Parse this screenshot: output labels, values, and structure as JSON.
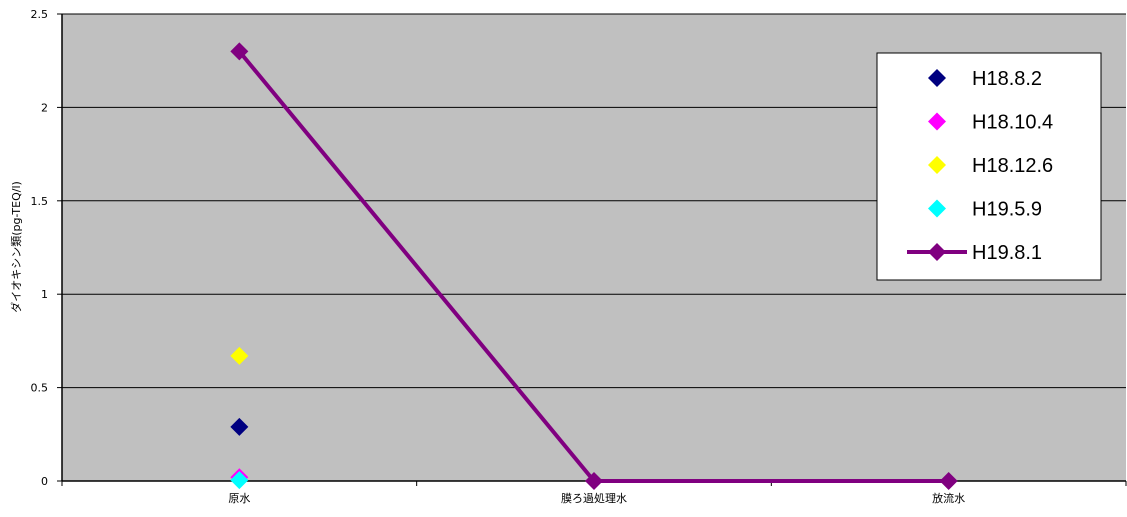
{
  "chart_data": {
    "type": "line",
    "categories": [
      "原水",
      "膜ろ過処理水",
      "放流水"
    ],
    "ylabel": "ダイオキシン類(pg-TEQ/l)",
    "ylim": [
      0,
      2.5
    ],
    "yticks": [
      "0",
      "0.5",
      "1",
      "1.5",
      "2",
      "2.5"
    ],
    "grid": true,
    "legend_position": "top-right",
    "series": [
      {
        "name": "H18.8.2",
        "values": [
          0.29,
          null,
          null
        ],
        "color": "#000080",
        "style": "marker"
      },
      {
        "name": "H18.10.4",
        "values": [
          0.02,
          null,
          null
        ],
        "color": "#ff00ff",
        "style": "marker"
      },
      {
        "name": "H18.12.6",
        "values": [
          0.67,
          null,
          null
        ],
        "color": "#ffff00",
        "style": "marker"
      },
      {
        "name": "H19.5.9",
        "values": [
          0.005,
          null,
          null
        ],
        "color": "#00ffff",
        "style": "marker"
      },
      {
        "name": "H19.8.1",
        "values": [
          2.3,
          0,
          0
        ],
        "color": "#800080",
        "style": "line-marker"
      }
    ],
    "colors": {
      "plot_background": "#c0c0c0",
      "grid": "#000000"
    }
  }
}
